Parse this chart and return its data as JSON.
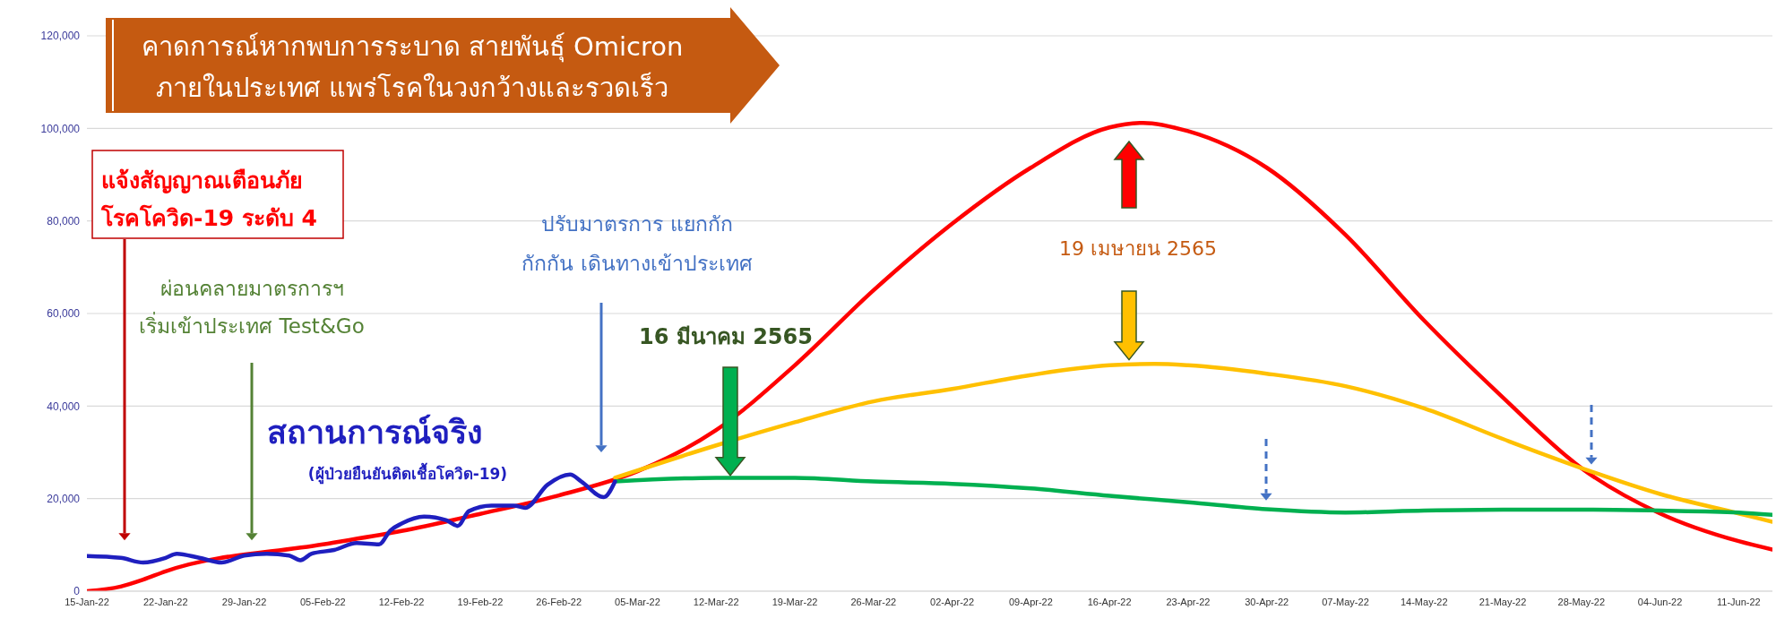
{
  "chart_data": {
    "type": "line",
    "xlim": [
      "--01-15",
      "--06-14"
    ],
    "xticks": [
      {
        "value": "--01-15",
        "label": "15-Jan-22"
      },
      {
        "value": "--01-22",
        "label": "22-Jan-22"
      },
      {
        "value": "--01-29",
        "label": "29-Jan-22"
      },
      {
        "value": "--02-05",
        "label": "05-Feb-22"
      },
      {
        "value": "--02-12",
        "label": "12-Feb-22"
      },
      {
        "value": "--02-19",
        "label": "19-Feb-22"
      },
      {
        "value": "--02-26",
        "label": "26-Feb-22"
      },
      {
        "value": "--03-05",
        "label": "05-Mar-22"
      },
      {
        "value": "--03-12",
        "label": "12-Mar-22"
      },
      {
        "value": "--03-19",
        "label": "19-Mar-22"
      },
      {
        "value": "--03-26",
        "label": "26-Mar-22"
      },
      {
        "value": "--04-02",
        "label": "02-Apr-22"
      },
      {
        "value": "--04-09",
        "label": "09-Apr-22"
      },
      {
        "value": "--04-16",
        "label": "16-Apr-22"
      },
      {
        "value": "--04-23",
        "label": "23-Apr-22"
      },
      {
        "value": "--04-30",
        "label": "30-Apr-22"
      },
      {
        "value": "--05-07",
        "label": "07-May-22"
      },
      {
        "value": "--05-14",
        "label": "14-May-22"
      },
      {
        "value": "--05-21",
        "label": "21-May-22"
      },
      {
        "value": "--05-28",
        "label": "28-May-22"
      },
      {
        "value": "--06-04",
        "label": "04-Jun-22"
      },
      {
        "value": "--06-11",
        "label": "11-Jun-22"
      }
    ],
    "ylim": [
      0,
      120000
    ],
    "yticks": [
      0,
      {
        "value": 20000,
        "label": "20,000"
      },
      {
        "value": 40000,
        "label": "40,000"
      },
      {
        "value": 60000,
        "label": "60,000"
      },
      {
        "value": 80000,
        "label": "80,000"
      },
      {
        "value": 100000,
        "label": "100,000"
      },
      {
        "value": 120000,
        "label": "120,000"
      }
    ],
    "grid": "y",
    "marker": "none",
    "line_style": "solid",
    "series": [
      {
        "color": "#ff0000",
        "x": [
          "--01-15",
          "--01-18",
          "--01-20",
          "--01-22",
          "--02-05",
          "--02-12",
          "--02-19",
          "--02-26",
          "--03-05",
          "--03-12",
          "--03-19",
          "--03-26",
          "--04-02",
          "--04-09",
          "--04-16",
          "--04-19",
          "--04-23",
          "--04-30",
          "--05-07",
          "--05-14",
          "--05-21",
          "--05-28",
          "--06-04",
          "--06-11",
          "--06-14"
        ],
        "values": [
          0,
          1000,
          2500,
          4300,
          10100,
          13000,
          16700,
          20700,
          25900,
          34800,
          48800,
          65000,
          79400,
          91500,
          100200,
          101200,
          99400,
          91500,
          77000,
          58500,
          41900,
          26600,
          16800,
          10800,
          9000
        ]
      },
      {
        "color": "#ffc000",
        "x": [
          "--03-03",
          "--03-12",
          "--03-19",
          "--03-26",
          "--04-02",
          "--04-09",
          "--04-16",
          "--04-20",
          "--04-23",
          "--04-30",
          "--05-07",
          "--05-14",
          "--05-21",
          "--05-28",
          "--06-04",
          "--06-11",
          "--06-14"
        ],
        "values": [
          24500,
          31500,
          36500,
          41000,
          43700,
          46700,
          48800,
          49100,
          48800,
          47000,
          44300,
          39500,
          32900,
          26600,
          21000,
          16800,
          15000
        ]
      },
      {
        "color": "#00b050",
        "x": [
          "--03-03",
          "--03-12",
          "--03-19",
          "--03-26",
          "--04-02",
          "--04-09",
          "--04-16",
          "--04-23",
          "--04-30",
          "--05-07",
          "--05-14",
          "--05-21",
          "--05-28",
          "--06-04",
          "--06-11",
          "--06-14"
        ],
        "values": [
          23700,
          24500,
          24500,
          23700,
          23200,
          22200,
          20600,
          19200,
          17700,
          17000,
          17400,
          17600,
          17600,
          17400,
          17000,
          16500
        ]
      },
      {
        "color": "#1f1fbf",
        "x": [
          "--01-15",
          "--01-18",
          "--01-20",
          "--01-22",
          "--01-23",
          "--01-25",
          "--01-27",
          "--01-29",
          "--01-31",
          "--02-02",
          "--02-03",
          "--02-04",
          "--02-06",
          "--02-08",
          "--02-10",
          "--02-11",
          "--02-12",
          "--02-14",
          "--02-16",
          "--02-17",
          "--02-18",
          "--02-20",
          "--02-22",
          "--02-23",
          "--02-25",
          "--02-27",
          "--02-28",
          "--03-02",
          "--03-03"
        ],
        "values": [
          7600,
          7200,
          6200,
          7200,
          8100,
          7200,
          6200,
          7700,
          8100,
          7700,
          6700,
          8100,
          8900,
          10400,
          10100,
          13100,
          14600,
          16100,
          15300,
          14100,
          17300,
          18500,
          18500,
          18000,
          23000,
          25200,
          23700,
          20300,
          23700
        ]
      }
    ],
    "annotations": [
      "คาดการณ์หากพบการระบาด สายพันธุ์ Omicron\nภายในประเทศ แพร่โรคในวงกว้างและรวดเร็ว",
      "แจ้งสัญญาณเตือนภัย\nโรคโควิด-19 ระดับ 4",
      "ผ่อนคลายมาตรการฯ\nเริ่มเข้าประเทศ Test&Go",
      "ปรับมาตรการ แยกกัก\nกักกัน เดินทางเข้าประเทศ",
      "16 มีนาคม 2565",
      "19 เมษายน 2565",
      "สถานการณ์จริง",
      "(ผู้ป่วยยืนยันติดเชื้อโควิด-19)"
    ]
  }
}
